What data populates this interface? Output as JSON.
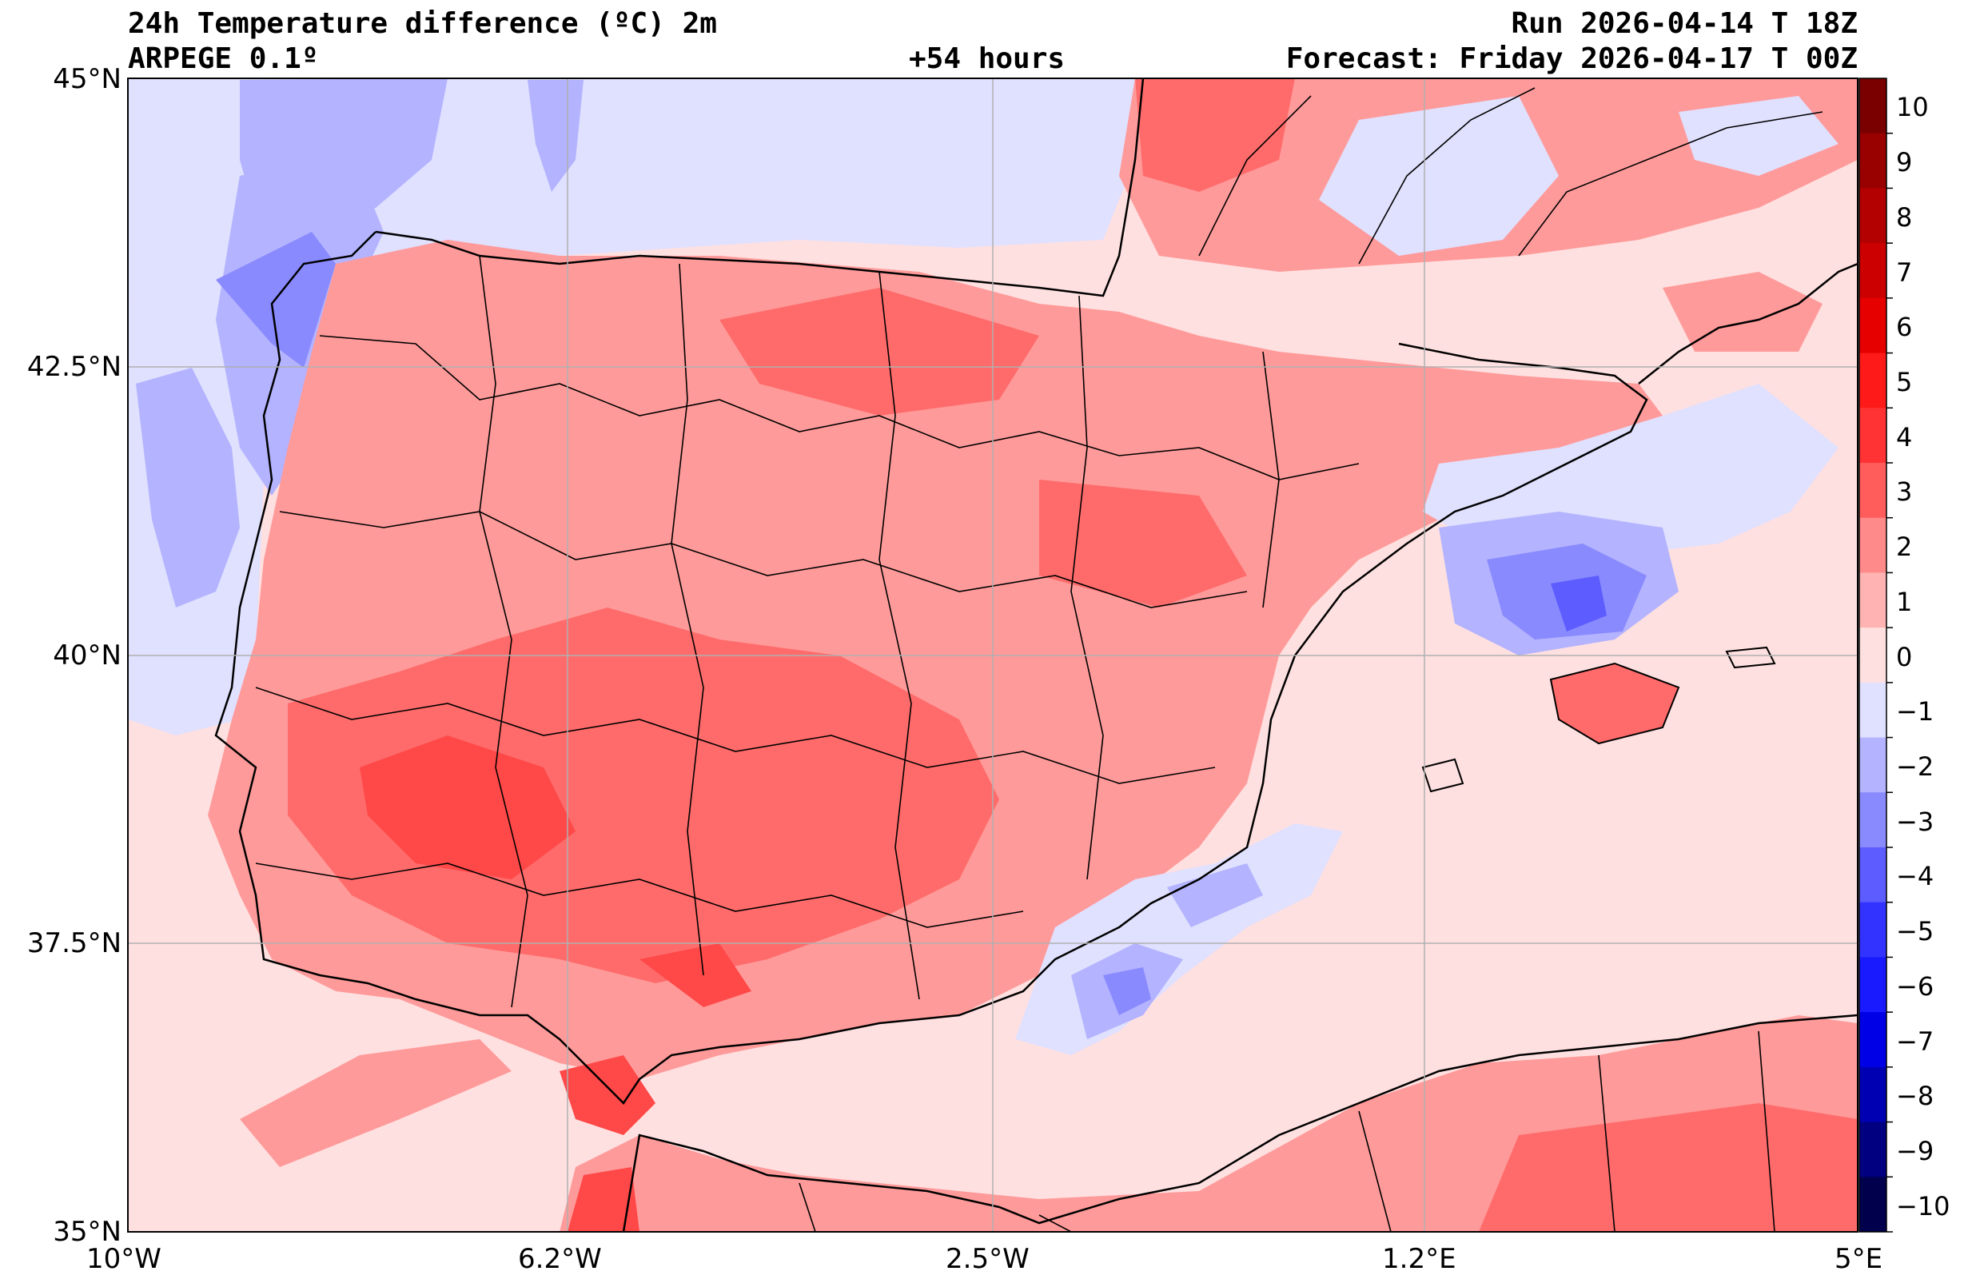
{
  "header": {
    "title": "24h Temperature difference (ºC) 2m",
    "model": "ARPEGE 0.1º",
    "lead_time": "+54 hours",
    "run": "Run 2026-04-14 T 18Z",
    "forecast": "Forecast: Friday 2026-04-17 T 00Z"
  },
  "axes": {
    "lat_labels": [
      "45°N",
      "42.5°N",
      "40°N",
      "37.5°N",
      "35°N"
    ],
    "lon_labels": [
      "10°W",
      "6.2°W",
      "2.5°W",
      "1.2°E",
      "5°E"
    ]
  },
  "colorbar": {
    "levels": [
      "10",
      "9",
      "8",
      "7",
      "6",
      "5",
      "4",
      "3",
      "2",
      "1",
      "0",
      "−1",
      "−2",
      "−3",
      "−4",
      "−5",
      "−6",
      "−7",
      "−8",
      "−9",
      "−10"
    ],
    "colors": [
      "#7a0000",
      "#990000",
      "#b30000",
      "#cc0000",
      "#e60000",
      "#ff1a1a",
      "#ff3333",
      "#ff5c5c",
      "#ff8a8a",
      "#ffb3b3",
      "#ffe0e0",
      "#e0e0ff",
      "#b3b3ff",
      "#8a8aff",
      "#5c5cff",
      "#3333ff",
      "#1a1aff",
      "#0000e6",
      "#0000b3",
      "#000080",
      "#00004d"
    ]
  },
  "colors": {
    "land_warm": "#ff9a9a",
    "land_hot": "#ff6b6b",
    "land_very_hot": "#ff4848",
    "mild": "#ffe0e0",
    "cool": "#e0e0ff",
    "cold": "#b3b3ff",
    "colder": "#8a8aff",
    "coldest": "#5c5cff"
  }
}
